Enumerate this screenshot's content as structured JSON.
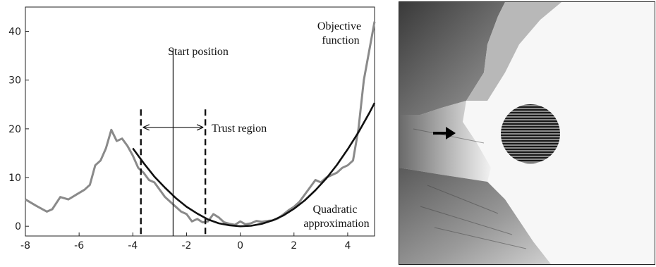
{
  "chart_data": {
    "type": "line",
    "title": "",
    "xlabel": "",
    "ylabel": "",
    "xlim": [
      -8,
      5
    ],
    "ylim": [
      -2,
      45
    ],
    "x_ticks": [
      -8,
      -6,
      -4,
      -2,
      0,
      2,
      4
    ],
    "y_ticks": [
      0,
      10,
      20,
      30,
      40
    ],
    "grid": false,
    "legend": "none",
    "series": [
      {
        "name": "Objective function",
        "color": "#8a8a8a",
        "x": [
          -8,
          -7.6,
          -7.2,
          -7.0,
          -6.7,
          -6.4,
          -6.1,
          -5.8,
          -5.6,
          -5.4,
          -5.2,
          -5.0,
          -4.8,
          -4.6,
          -4.4,
          -4.2,
          -4.0,
          -3.8,
          -3.6,
          -3.4,
          -3.2,
          -3.0,
          -2.8,
          -2.6,
          -2.4,
          -2.2,
          -2.0,
          -1.8,
          -1.6,
          -1.4,
          -1.2,
          -1.0,
          -0.8,
          -0.6,
          -0.4,
          -0.2,
          0.0,
          0.2,
          0.4,
          0.6,
          0.8,
          1.0,
          1.2,
          1.4,
          1.6,
          1.8,
          2.0,
          2.2,
          2.4,
          2.6,
          2.8,
          3.0,
          3.2,
          3.4,
          3.6,
          3.8,
          4.0,
          4.2,
          4.4,
          4.6,
          4.8,
          5.0
        ],
        "y": [
          5.5,
          4.2,
          3.0,
          3.5,
          6.0,
          5.5,
          6.5,
          7.5,
          8.5,
          12.5,
          13.5,
          16.0,
          19.8,
          17.5,
          18.0,
          16.5,
          14.5,
          12.0,
          11.0,
          9.5,
          9.0,
          7.5,
          6.0,
          5.0,
          4.0,
          3.0,
          2.5,
          1.0,
          1.5,
          0.8,
          1.0,
          2.5,
          1.8,
          0.8,
          0.5,
          0.3,
          1.0,
          0.4,
          0.6,
          1.1,
          0.9,
          1.1,
          1.2,
          1.6,
          2.4,
          3.3,
          4.0,
          5.0,
          6.5,
          8.0,
          9.5,
          9.0,
          10.0,
          10.5,
          11.0,
          12.0,
          12.5,
          13.5,
          20.0,
          30.0,
          36.0,
          42.0
        ]
      },
      {
        "name": "Quadratic approximation",
        "color": "#111111",
        "x": [
          -4.0,
          -3.6,
          -3.2,
          -2.8,
          -2.4,
          -2.0,
          -1.6,
          -1.2,
          -0.8,
          -0.4,
          0.0,
          0.4,
          0.8,
          1.2,
          1.6,
          2.0,
          2.4,
          2.8,
          3.2,
          3.6,
          4.0,
          4.4,
          4.8,
          5.0
        ],
        "y": [
          16.0,
          13.0,
          10.2,
          7.9,
          5.8,
          4.0,
          2.6,
          1.4,
          0.6,
          0.2,
          0.0,
          0.1,
          0.5,
          1.2,
          2.2,
          3.6,
          5.3,
          7.4,
          9.8,
          12.6,
          15.8,
          19.3,
          23.2,
          25.3
        ]
      }
    ],
    "start_position": {
      "x": -2.5
    },
    "trust_region": {
      "x_min": -3.7,
      "x_max": -1.3
    },
    "annotations": [
      {
        "id": "start",
        "text": "Start position"
      },
      {
        "id": "trust",
        "text": "Trust region"
      },
      {
        "id": "objective",
        "lines": [
          "Objective",
          "function"
        ]
      },
      {
        "id": "quadratic",
        "lines": [
          "Quadratic",
          "approximation"
        ]
      }
    ]
  }
}
